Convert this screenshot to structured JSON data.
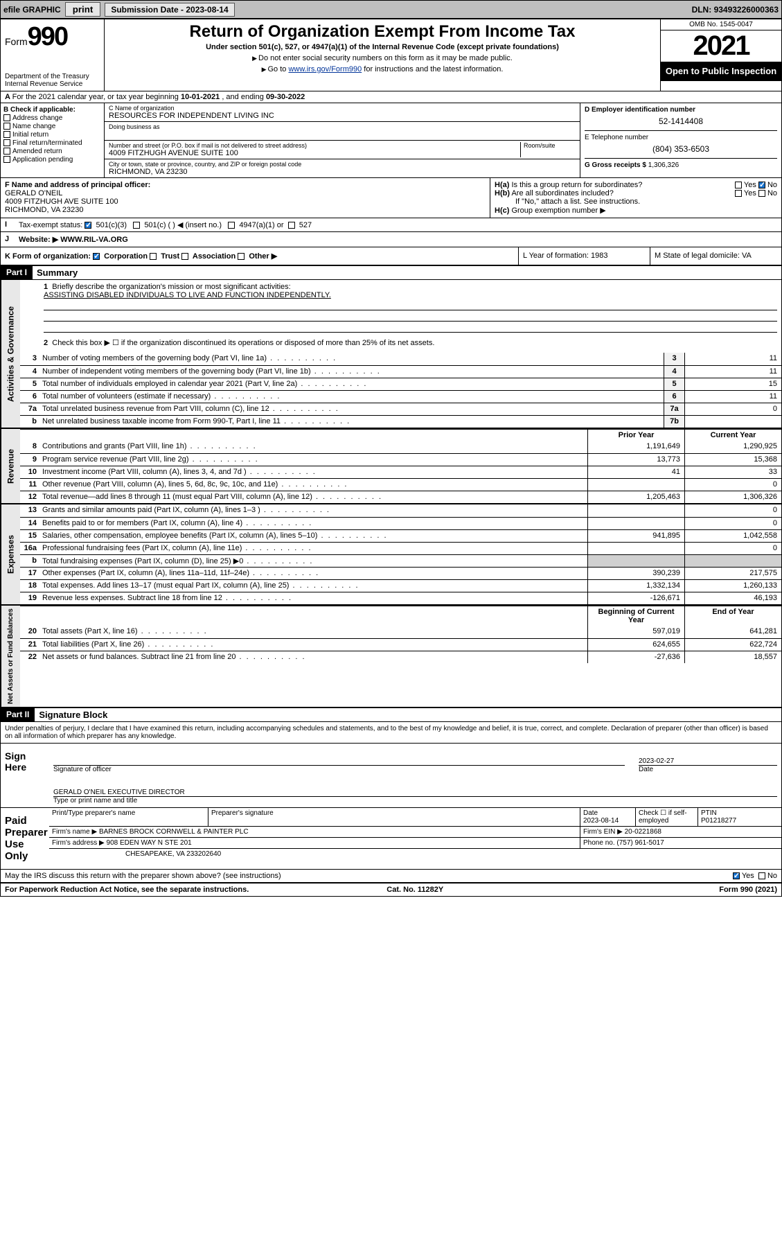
{
  "topbar": {
    "efile": "efile GRAPHIC",
    "print": "print",
    "sub_label": "Submission Date - ",
    "sub_date": "2023-08-14",
    "dln_label": "DLN: ",
    "dln": "93493226000363"
  },
  "header": {
    "form_word": "Form",
    "form_num": "990",
    "dept": "Department of the Treasury",
    "irs": "Internal Revenue Service",
    "title": "Return of Organization Exempt From Income Tax",
    "sub": "Under section 501(c), 527, or 4947(a)(1) of the Internal Revenue Code (except private foundations)",
    "note1": "Do not enter social security numbers on this form as it may be made public.",
    "note2_pre": "Go to ",
    "note2_link": "www.irs.gov/Form990",
    "note2_post": " for instructions and the latest information.",
    "omb": "OMB No. 1545-0047",
    "year": "2021",
    "inspect": "Open to Public Inspection"
  },
  "rowA": {
    "text_pre": "For the 2021 calendar year, or tax year beginning ",
    "begin": "10-01-2021",
    "mid": " , and ending ",
    "end": "09-30-2022"
  },
  "colB": {
    "hdr": "B Check if applicable:",
    "items": [
      "Address change",
      "Name change",
      "Initial return",
      "Final return/terminated",
      "Amended return",
      "Application pending"
    ]
  },
  "colC": {
    "name_lbl": "C Name of organization",
    "name": "RESOURCES FOR INDEPENDENT LIVING INC",
    "dba_lbl": "Doing business as",
    "addr_lbl": "Number and street (or P.O. box if mail is not delivered to street address)",
    "room_lbl": "Room/suite",
    "addr": "4009 FITZHUGH AVENUE SUITE 100",
    "city_lbl": "City or town, state or province, country, and ZIP or foreign postal code",
    "city": "RICHMOND, VA  23230"
  },
  "colD": {
    "ein_lbl": "D Employer identification number",
    "ein": "52-1414408",
    "tel_lbl": "E Telephone number",
    "tel": "(804) 353-6503",
    "gross_lbl": "G Gross receipts $ ",
    "gross": "1,306,326"
  },
  "rowF": {
    "lbl": "F Name and address of principal officer:",
    "name": "GERALD O'NEIL",
    "addr1": "4009 FITZHUGH AVE SUITE 100",
    "addr2": "RICHMOND, VA  23230"
  },
  "rowH": {
    "ha": "Is this a group return for subordinates?",
    "hb": "Are all subordinates included?",
    "hb_note": "If \"No,\" attach a list. See instructions.",
    "hc": "Group exemption number ▶",
    "yes": "Yes",
    "no": "No"
  },
  "rowI": {
    "lbl": "Tax-exempt status:",
    "o1": "501(c)(3)",
    "o2": "501(c) (  ) ◀ (insert no.)",
    "o3": "4947(a)(1) or",
    "o4": "527"
  },
  "rowJ": {
    "lbl": "Website: ▶",
    "val": "WWW.RIL-VA.ORG"
  },
  "rowK": {
    "lbl": "K Form of organization:",
    "o1": "Corporation",
    "o2": "Trust",
    "o3": "Association",
    "o4": "Other ▶",
    "l_lbl": "L Year of formation: ",
    "l_val": "1983",
    "m_lbl": "M State of legal domicile: ",
    "m_val": "VA"
  },
  "partI": {
    "hdr": "Part I",
    "title": "Summary",
    "q1_lbl": "Briefly describe the organization's mission or most significant activities:",
    "q1_val": "ASSISTING DISABLED INDIVIDUALS TO LIVE AND FUNCTION INDEPENDENTLY.",
    "q2": "Check this box ▶ ☐ if the organization discontinued its operations or disposed of more than 25% of its net assets."
  },
  "gov_lines": [
    {
      "n": "3",
      "d": "Number of voting members of the governing body (Part VI, line 1a)",
      "box": "3",
      "v": "11"
    },
    {
      "n": "4",
      "d": "Number of independent voting members of the governing body (Part VI, line 1b)",
      "box": "4",
      "v": "11"
    },
    {
      "n": "5",
      "d": "Total number of individuals employed in calendar year 2021 (Part V, line 2a)",
      "box": "5",
      "v": "15"
    },
    {
      "n": "6",
      "d": "Total number of volunteers (estimate if necessary)",
      "box": "6",
      "v": "11"
    },
    {
      "n": "7a",
      "d": "Total unrelated business revenue from Part VIII, column (C), line 12",
      "box": "7a",
      "v": "0"
    },
    {
      "n": "b",
      "d": "Net unrelated business taxable income from Form 990-T, Part I, line 11",
      "box": "7b",
      "v": ""
    }
  ],
  "col_hdrs": {
    "prior": "Prior Year",
    "current": "Current Year",
    "bocy": "Beginning of Current Year",
    "eoy": "End of Year"
  },
  "rev_lines": [
    {
      "n": "8",
      "d": "Contributions and grants (Part VIII, line 1h)",
      "p": "1,191,649",
      "c": "1,290,925"
    },
    {
      "n": "9",
      "d": "Program service revenue (Part VIII, line 2g)",
      "p": "13,773",
      "c": "15,368"
    },
    {
      "n": "10",
      "d": "Investment income (Part VIII, column (A), lines 3, 4, and 7d )",
      "p": "41",
      "c": "33"
    },
    {
      "n": "11",
      "d": "Other revenue (Part VIII, column (A), lines 5, 6d, 8c, 9c, 10c, and 11e)",
      "p": "",
      "c": "0"
    },
    {
      "n": "12",
      "d": "Total revenue—add lines 8 through 11 (must equal Part VIII, column (A), line 12)",
      "p": "1,205,463",
      "c": "1,306,326"
    }
  ],
  "exp_lines": [
    {
      "n": "13",
      "d": "Grants and similar amounts paid (Part IX, column (A), lines 1–3 )",
      "p": "",
      "c": "0"
    },
    {
      "n": "14",
      "d": "Benefits paid to or for members (Part IX, column (A), line 4)",
      "p": "",
      "c": "0"
    },
    {
      "n": "15",
      "d": "Salaries, other compensation, employee benefits (Part IX, column (A), lines 5–10)",
      "p": "941,895",
      "c": "1,042,558"
    },
    {
      "n": "16a",
      "d": "Professional fundraising fees (Part IX, column (A), line 11e)",
      "p": "",
      "c": "0"
    },
    {
      "n": "b",
      "d": "Total fundraising expenses (Part IX, column (D), line 25) ▶0",
      "p": "shade",
      "c": "shade"
    },
    {
      "n": "17",
      "d": "Other expenses (Part IX, column (A), lines 11a–11d, 11f–24e)",
      "p": "390,239",
      "c": "217,575"
    },
    {
      "n": "18",
      "d": "Total expenses. Add lines 13–17 (must equal Part IX, column (A), line 25)",
      "p": "1,332,134",
      "c": "1,260,133"
    },
    {
      "n": "19",
      "d": "Revenue less expenses. Subtract line 18 from line 12",
      "p": "-126,671",
      "c": "46,193"
    }
  ],
  "net_lines": [
    {
      "n": "20",
      "d": "Total assets (Part X, line 16)",
      "p": "597,019",
      "c": "641,281"
    },
    {
      "n": "21",
      "d": "Total liabilities (Part X, line 26)",
      "p": "624,655",
      "c": "622,724"
    },
    {
      "n": "22",
      "d": "Net assets or fund balances. Subtract line 21 from line 20",
      "p": "-27,636",
      "c": "18,557"
    }
  ],
  "side_tabs": {
    "gov": "Activities & Governance",
    "rev": "Revenue",
    "exp": "Expenses",
    "net": "Net Assets or Fund Balances"
  },
  "partII": {
    "hdr": "Part II",
    "title": "Signature Block",
    "decl": "Under penalties of perjury, I declare that I have examined this return, including accompanying schedules and statements, and to the best of my knowledge and belief, it is true, correct, and complete. Declaration of preparer (other than officer) is based on all information of which preparer has any knowledge."
  },
  "sign": {
    "here": "Sign Here",
    "sig_lbl": "Signature of officer",
    "date_lbl": "Date",
    "date": "2023-02-27",
    "name": "GERALD O'NEIL  EXECUTIVE DIRECTOR",
    "name_lbl": "Type or print name and title"
  },
  "paid": {
    "hdr": "Paid Preparer Use Only",
    "h1": "Print/Type preparer's name",
    "h2": "Preparer's signature",
    "h3": "Date",
    "h3v": "2023-08-14",
    "h4": "Check ☐ if self-employed",
    "h5": "PTIN",
    "h5v": "P01218277",
    "firm_lbl": "Firm's name    ▶ ",
    "firm": "BARNES BROCK CORNWELL & PAINTER PLC",
    "ein_lbl": "Firm's EIN ▶ ",
    "ein": "20-0221868",
    "addr_lbl": "Firm's address ▶ ",
    "addr1": "908 EDEN WAY N STE 201",
    "addr2": "CHESAPEAKE, VA  233202640",
    "ph_lbl": "Phone no. ",
    "ph": "(757) 961-5017"
  },
  "discuss": {
    "q": "May the IRS discuss this return with the preparer shown above? (see instructions)",
    "yes": "Yes",
    "no": "No"
  },
  "footer": {
    "left": "For Paperwork Reduction Act Notice, see the separate instructions.",
    "mid": "Cat. No. 11282Y",
    "right": "Form 990 (2021)"
  }
}
